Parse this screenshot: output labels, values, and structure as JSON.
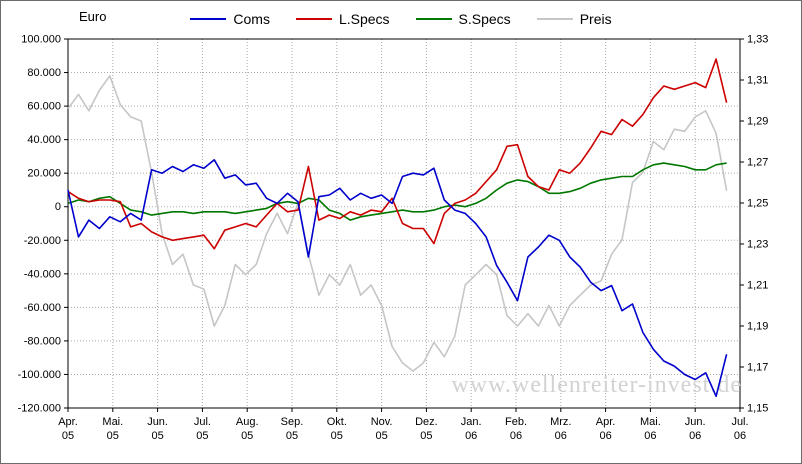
{
  "chart_data": {
    "type": "line",
    "title": "Euro",
    "watermark": "www.wellenreiter-invest.de",
    "legend_position": "top",
    "grid": true,
    "x_span_months": 15,
    "data_end_month": 14.7,
    "axes": {
      "y_left": {
        "min": -120000,
        "max": 100000,
        "step": 20000,
        "tick_labels": [
          "100.000",
          "80.000",
          "60.000",
          "40.000",
          "20.000",
          "0",
          "-20.000",
          "-40.000",
          "-60.000",
          "-80.000",
          "-100.000",
          "-120.000"
        ],
        "positive_label_color": "#000000",
        "negative_label_color": "#cc0000"
      },
      "y_right": {
        "min": 1.15,
        "max": 1.33,
        "step": 0.02,
        "tick_labels": [
          "1,33",
          "1,31",
          "1,29",
          "1,27",
          "1,25",
          "1,23",
          "1,21",
          "1,19",
          "1,17",
          "1,15"
        ]
      },
      "x": {
        "tick_labels_month": [
          "Apr.",
          "Mai.",
          "Jun.",
          "Jul.",
          "Aug.",
          "Sep.",
          "Okt.",
          "Nov.",
          "Dez.",
          "Jan.",
          "Feb.",
          "Mrz.",
          "Apr.",
          "Mai.",
          "Jun.",
          "Jul."
        ],
        "tick_labels_year": [
          "05",
          "05",
          "05",
          "05",
          "05",
          "05",
          "05",
          "05",
          "05",
          "06",
          "06",
          "06",
          "06",
          "06",
          "06",
          "06"
        ]
      }
    },
    "series": [
      {
        "name": "Coms",
        "color": "#0000cc",
        "axis": "left",
        "values": [
          10000,
          -18000,
          -8000,
          -13000,
          -6000,
          -9000,
          -4000,
          -8000,
          22000,
          20000,
          24000,
          21000,
          25000,
          23000,
          28000,
          17000,
          19000,
          13000,
          14000,
          5000,
          2000,
          8000,
          3000,
          -30000,
          6000,
          7000,
          11000,
          4000,
          8000,
          5000,
          7000,
          2000,
          18000,
          20000,
          19000,
          23000,
          4000,
          -2000,
          -4000,
          -10000,
          -18000,
          -35000,
          -45000,
          -56000,
          -30000,
          -24000,
          -17000,
          -20000,
          -30000,
          -36000,
          -45000,
          -50000,
          -47000,
          -62000,
          -58000,
          -75000,
          -85000,
          -92000,
          -95000,
          -100000,
          -103000,
          -99000,
          -113000,
          -88000
        ]
      },
      {
        "name": "L.Specs",
        "color": "#cc0000",
        "axis": "left",
        "values": [
          9000,
          5000,
          3000,
          4000,
          4000,
          3000,
          -12000,
          -10000,
          -15000,
          -18000,
          -20000,
          -19000,
          -18000,
          -17000,
          -25000,
          -14000,
          -12000,
          -10000,
          -12000,
          -5000,
          2000,
          -3000,
          -2000,
          24000,
          -8000,
          -5000,
          -7000,
          -3000,
          -5000,
          -2000,
          -3000,
          5000,
          -10000,
          -13000,
          -13000,
          -22000,
          -4000,
          2000,
          4000,
          8000,
          15000,
          22000,
          36000,
          37000,
          18000,
          12000,
          10000,
          22000,
          20000,
          26000,
          35000,
          45000,
          43000,
          52000,
          48000,
          55000,
          65000,
          72000,
          70000,
          72000,
          74000,
          71000,
          88000,
          62000
        ]
      },
      {
        "name": "S.Specs",
        "color": "#007700",
        "axis": "left",
        "values": [
          2000,
          4000,
          3000,
          5000,
          6000,
          2000,
          -2000,
          -3000,
          -5000,
          -4000,
          -3000,
          -3000,
          -4000,
          -3000,
          -3000,
          -3000,
          -4000,
          -3000,
          -2000,
          -1000,
          2000,
          3000,
          2000,
          5000,
          4000,
          -2000,
          -4000,
          -8000,
          -6000,
          -5000,
          -4000,
          -3000,
          -2000,
          -3000,
          -3000,
          -2000,
          0,
          1000,
          0,
          2000,
          5000,
          10000,
          14000,
          16000,
          15000,
          12000,
          8000,
          8000,
          9000,
          11000,
          14000,
          16000,
          17000,
          18000,
          18000,
          22000,
          25000,
          26000,
          25000,
          24000,
          22000,
          22000,
          25000,
          26000
        ]
      },
      {
        "name": "Preis",
        "color": "#c6c6c6",
        "axis": "right",
        "values": [
          1.296,
          1.303,
          1.295,
          1.305,
          1.312,
          1.298,
          1.292,
          1.29,
          1.265,
          1.235,
          1.22,
          1.225,
          1.21,
          1.208,
          1.19,
          1.2,
          1.22,
          1.215,
          1.22,
          1.235,
          1.245,
          1.235,
          1.25,
          1.225,
          1.205,
          1.215,
          1.21,
          1.22,
          1.205,
          1.21,
          1.2,
          1.18,
          1.172,
          1.168,
          1.172,
          1.182,
          1.175,
          1.185,
          1.21,
          1.215,
          1.22,
          1.215,
          1.195,
          1.19,
          1.196,
          1.19,
          1.2,
          1.19,
          1.2,
          1.205,
          1.21,
          1.212,
          1.225,
          1.232,
          1.26,
          1.265,
          1.28,
          1.276,
          1.286,
          1.285,
          1.292,
          1.295,
          1.284,
          1.256
        ]
      }
    ]
  }
}
